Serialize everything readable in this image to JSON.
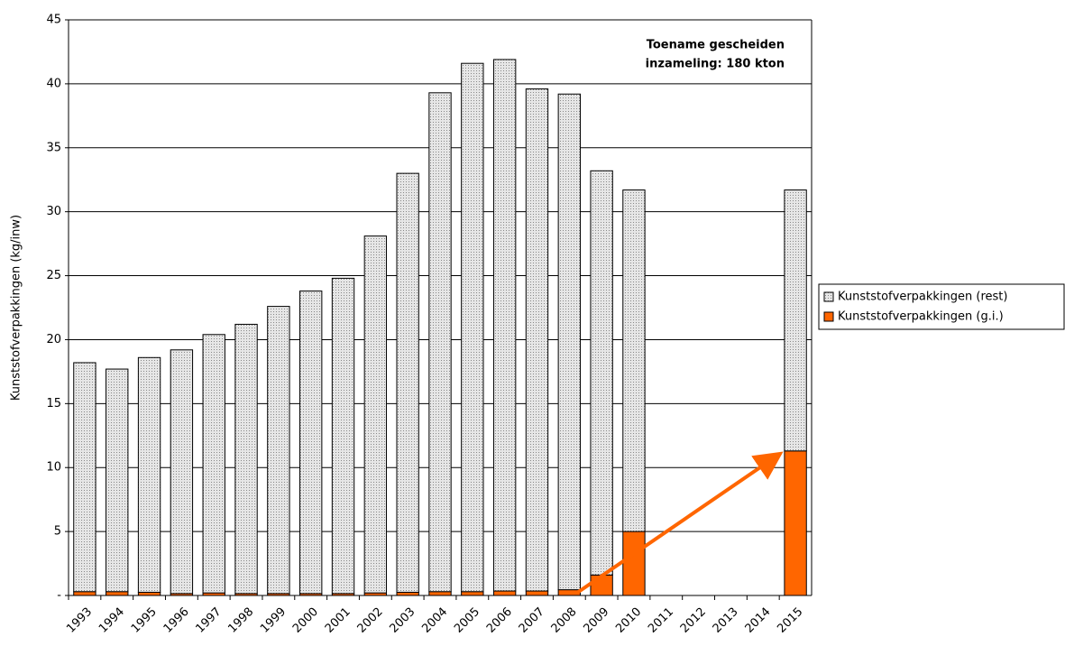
{
  "chart_data": {
    "type": "stacked-bar",
    "y_label": "Kunststofverpakkingen (kg/inw)",
    "annotation": [
      "Toename gescheiden",
      "inzameling: 180 kton"
    ],
    "categories": [
      "1993",
      "1994",
      "1995",
      "1996",
      "1997",
      "1998",
      "1999",
      "2000",
      "2001",
      "2002",
      "2003",
      "2004",
      "2005",
      "2006",
      "2007",
      "2008",
      "2009",
      "2010",
      "2011",
      "2012",
      "2013",
      "2014",
      "2015"
    ],
    "series": [
      {
        "name": "Kunststofverpakkingen (g.i.)",
        "color": "#ff6600",
        "values": [
          0.3,
          0.3,
          0.25,
          0.15,
          0.2,
          0.15,
          0.15,
          0.15,
          0.15,
          0.2,
          0.25,
          0.3,
          0.3,
          0.35,
          0.35,
          0.45,
          1.6,
          5.0,
          null,
          null,
          null,
          null,
          11.3
        ]
      },
      {
        "name": "Kunststofverpakkingen (rest)",
        "color": "#cccccc",
        "values": [
          17.9,
          17.4,
          18.35,
          19.05,
          20.2,
          21.05,
          22.45,
          23.65,
          24.65,
          27.9,
          32.75,
          39.0,
          41.3,
          41.55,
          39.25,
          38.75,
          31.6,
          26.7,
          null,
          null,
          null,
          null,
          20.4
        ]
      }
    ],
    "ylim": [
      0,
      45
    ],
    "yticks": [
      {
        "value": 0,
        "label": "-"
      },
      5,
      10,
      15,
      20,
      25,
      30,
      35,
      40,
      45
    ],
    "grid": true,
    "legend": "right"
  }
}
